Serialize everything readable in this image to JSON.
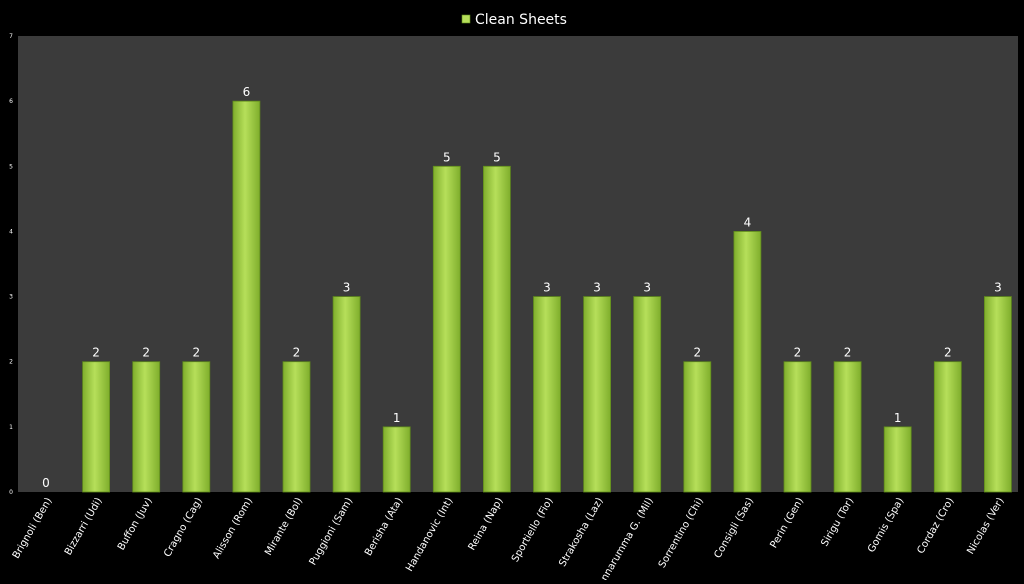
{
  "chart_data": {
    "type": "bar",
    "title": "",
    "xlabel": "",
    "ylabel": "",
    "ylim": [
      0,
      7
    ],
    "yticks": [
      "0",
      "1",
      "2",
      "3",
      "4",
      "5",
      "6",
      "7"
    ],
    "grid": false,
    "legend_position": "top-center",
    "categories": [
      "Brignoli (Ben)",
      "Bizzarri (Udi)",
      "Buffon (Juv)",
      "Cragno (Cag)",
      "Alisson (Rom)",
      "Mirante (Bol)",
      "Puggioni (Sam)",
      "Berisha (Ata)",
      "Handanovic (Int)",
      "Reina (Nap)",
      "Sportiello (Fio)",
      "Strakosha (Laz)",
      "Donnarumma G. (Mil)",
      "Sorrentino (Chi)",
      "Consigli (Sas)",
      "Perin (Gen)",
      "Sirigu (Tor)",
      "Gomis (Spa)",
      "Cordaz (Cro)",
      "Nicolas (Ver)"
    ],
    "series": [
      {
        "name": "Clean Sheets",
        "values": [
          0,
          2,
          2,
          2,
          6,
          2,
          3,
          1,
          5,
          5,
          3,
          3,
          3,
          2,
          4,
          2,
          2,
          1,
          2,
          3
        ]
      }
    ],
    "colors": {
      "background": "#000000",
      "plot_area": "#3b3b3b",
      "bar_light": "#b6df5a",
      "bar_dark": "#7fae2c",
      "bar_edge": "#5f8a1c",
      "text": "#ffffff"
    }
  }
}
